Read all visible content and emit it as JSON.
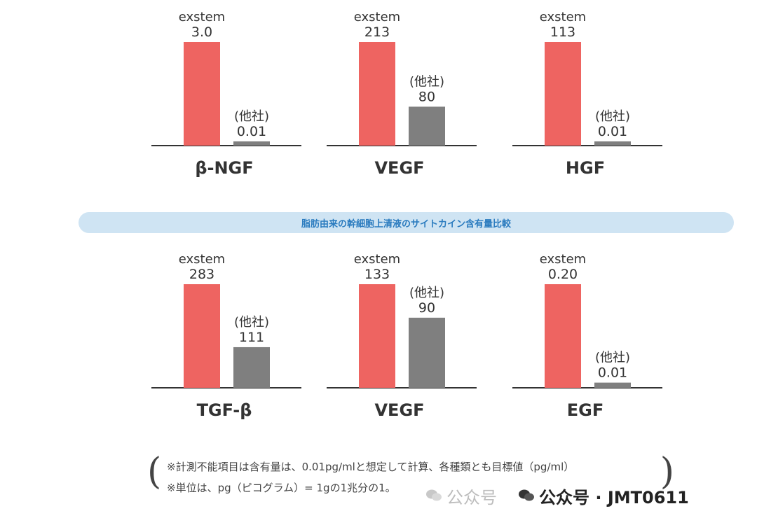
{
  "chart_data": [
    {
      "type": "bar",
      "title": "β-NGF",
      "categories": [
        "exstem",
        "(他社)"
      ],
      "values": [
        3.0,
        0.01
      ],
      "labels": [
        "3.0",
        "0.01"
      ],
      "ylim": [
        0,
        3.0
      ],
      "colors": [
        "#ee6461",
        "#7f7f7f"
      ]
    },
    {
      "type": "bar",
      "title": "VEGF",
      "categories": [
        "exstem",
        "(他社)"
      ],
      "values": [
        213,
        80
      ],
      "labels": [
        "213",
        "80"
      ],
      "ylim": [
        0,
        213
      ],
      "colors": [
        "#ee6461",
        "#7f7f7f"
      ]
    },
    {
      "type": "bar",
      "title": "HGF",
      "categories": [
        "exstem",
        "(他社)"
      ],
      "values": [
        113,
        0.01
      ],
      "labels": [
        "113",
        "0.01"
      ],
      "ylim": [
        0,
        113
      ],
      "colors": [
        "#ee6461",
        "#7f7f7f"
      ]
    },
    {
      "type": "bar",
      "title": "TGF-β",
      "categories": [
        "exstem",
        "(他社)"
      ],
      "values": [
        283,
        111
      ],
      "labels": [
        "283",
        "111"
      ],
      "ylim": [
        0,
        283
      ],
      "colors": [
        "#ee6461",
        "#7f7f7f"
      ]
    },
    {
      "type": "bar",
      "title": "VEGF",
      "categories": [
        "exstem",
        "(他社)"
      ],
      "values": [
        133,
        90
      ],
      "labels": [
        "133",
        "90"
      ],
      "ylim": [
        0,
        133
      ],
      "colors": [
        "#ee6461",
        "#7f7f7f"
      ]
    },
    {
      "type": "bar",
      "title": "EGF",
      "categories": [
        "exstem",
        "(他社)"
      ],
      "values": [
        0.2,
        0.01
      ],
      "labels": [
        "0.20",
        "0.01"
      ],
      "ylim": [
        0,
        0.2
      ],
      "colors": [
        "#ee6461",
        "#7f7f7f"
      ]
    }
  ],
  "banner": "脂肪由来の幹細胞上清液のサイトカイン含有量比較",
  "notes": {
    "line1": "※計測不能項目は含有量は、0.01pg/mlと想定して計算、各種類とも目標値（pg/ml）",
    "line2": "※単位は、pg（ピコグラム）= 1gの1兆分の1。"
  },
  "watermark": {
    "left": "公众号",
    "right": "公众号 · JMT0611"
  }
}
